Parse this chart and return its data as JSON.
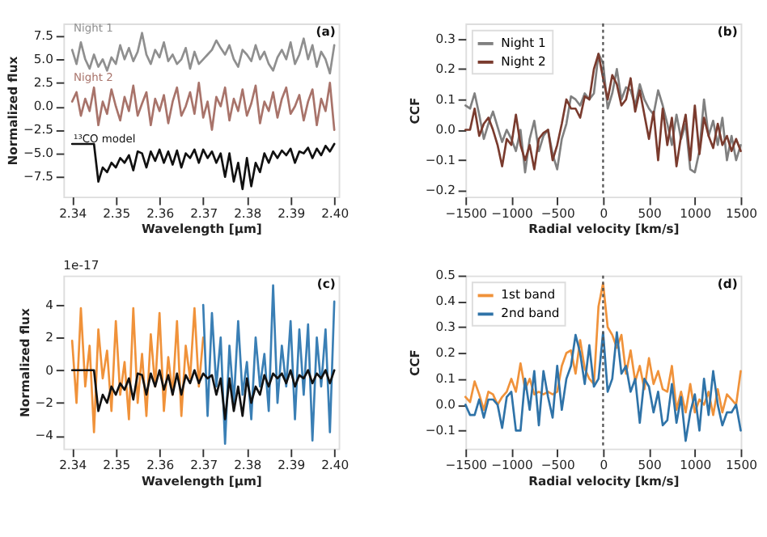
{
  "chart_data": [
    {
      "type": "line",
      "xlabel": "Wavelength [μm]",
      "ylabel": "Normalized flux",
      "annotations": [
        "(a)"
      ],
      "legend": false,
      "x": [
        2.34,
        2.341,
        2.342,
        2.343,
        2.344,
        2.345,
        2.346,
        2.347,
        2.348,
        2.349,
        2.35,
        2.351,
        2.352,
        2.353,
        2.354,
        2.355,
        2.356,
        2.357,
        2.358,
        2.359,
        2.36,
        2.361,
        2.362,
        2.363,
        2.364,
        2.365,
        2.366,
        2.367,
        2.368,
        2.369,
        2.37,
        2.371,
        2.372,
        2.373,
        2.374,
        2.375,
        2.376,
        2.377,
        2.378,
        2.379,
        2.38,
        2.381,
        2.382,
        2.383,
        2.384,
        2.385,
        2.386,
        2.387,
        2.388,
        2.389,
        2.39,
        2.391,
        2.392,
        2.393,
        2.394,
        2.395,
        2.396,
        2.397,
        2.398,
        2.399,
        2.4
      ],
      "series": [
        {
          "name": "Night 1",
          "color": "#8f8f8f",
          "values": [
            6.0,
            4.5,
            6.8,
            5.0,
            4.0,
            5.5,
            4.2,
            5.0,
            3.8,
            5.2,
            4.5,
            6.5,
            5.0,
            6.2,
            4.8,
            5.8,
            7.8,
            5.5,
            4.5,
            6.0,
            5.2,
            6.8,
            4.8,
            5.5,
            4.5,
            5.0,
            6.2,
            4.0,
            5.8,
            4.5,
            5.0,
            5.5,
            6.0,
            7.0,
            6.2,
            5.5,
            6.5,
            5.0,
            4.2,
            6.0,
            5.5,
            4.8,
            6.5,
            5.0,
            5.8,
            4.5,
            3.8,
            5.2,
            6.0,
            5.0,
            6.8,
            4.5,
            5.5,
            7.2,
            5.0,
            6.5,
            4.2,
            5.8,
            5.0,
            3.5,
            6.5
          ]
        },
        {
          "name": "Night 2",
          "color": "#a8736a",
          "values": [
            0.5,
            1.5,
            -1.0,
            0.8,
            -0.5,
            2.0,
            -2.0,
            0.5,
            -0.8,
            1.8,
            0.0,
            -1.5,
            1.0,
            -0.5,
            2.2,
            -1.0,
            0.3,
            1.5,
            -2.0,
            0.8,
            -0.5,
            1.2,
            -1.8,
            0.5,
            2.0,
            -1.0,
            0.0,
            1.5,
            -0.8,
            2.5,
            -1.2,
            0.5,
            -2.5,
            1.0,
            0.0,
            2.0,
            -1.5,
            0.8,
            -0.5,
            1.8,
            -1.0,
            0.3,
            2.2,
            -1.8,
            0.5,
            -0.5,
            1.5,
            -1.2,
            0.8,
            2.0,
            -0.8,
            0.0,
            1.2,
            -1.5,
            0.5,
            1.8,
            -2.0,
            0.8,
            -0.5,
            2.5,
            -2.5
          ]
        },
        {
          "name": "¹³CO model",
          "color": "#111111",
          "values": [
            -4.0,
            -4.0,
            -4.0,
            -4.0,
            -4.0,
            -4.0,
            -8.0,
            -6.5,
            -7.0,
            -6.0,
            -6.5,
            -5.5,
            -6.0,
            -5.2,
            -6.8,
            -4.8,
            -5.0,
            -6.5,
            -4.8,
            -5.8,
            -4.6,
            -6.0,
            -4.8,
            -6.2,
            -4.7,
            -6.5,
            -5.0,
            -5.5,
            -4.6,
            -6.0,
            -4.6,
            -5.5,
            -4.8,
            -6.0,
            -5.0,
            -7.5,
            -5.0,
            -8.0,
            -6.0,
            -8.8,
            -5.5,
            -8.5,
            -6.0,
            -7.0,
            -5.0,
            -6.0,
            -4.8,
            -5.5,
            -4.7,
            -5.2,
            -4.5,
            -6.0,
            -4.8,
            -5.0,
            -4.4,
            -5.5,
            -4.5,
            -5.2,
            -4.2,
            -4.8,
            -4.0
          ]
        }
      ],
      "xlim": [
        2.338,
        2.401
      ],
      "xticks": [
        {
          "value": 2.34,
          "label": "2.34"
        },
        {
          "value": 2.35,
          "label": "2.35"
        },
        {
          "value": 2.36,
          "label": "2.36"
        },
        {
          "value": 2.37,
          "label": "2.37"
        },
        {
          "value": 2.38,
          "label": "2.38"
        },
        {
          "value": 2.39,
          "label": "2.39"
        },
        {
          "value": 2.4,
          "label": "2.40"
        }
      ],
      "ylim": [
        -9.6,
        8.8
      ],
      "yticks": [
        {
          "value": -7.5,
          "label": "−7.5"
        },
        {
          "value": -5,
          "label": "−5.0"
        },
        {
          "value": -2.5,
          "label": "−2.5"
        },
        {
          "value": 0,
          "label": "0.0"
        },
        {
          "value": 2.5,
          "label": "2.5"
        },
        {
          "value": 5,
          "label": "5.0"
        },
        {
          "value": 7.5,
          "label": "7.5"
        }
      ]
    },
    {
      "type": "line",
      "xlabel": "Radial velocity [km/s]",
      "ylabel": "CCF",
      "annotations": [
        "(b)"
      ],
      "legend": "top left",
      "x": [
        -1500,
        -1450,
        -1400,
        -1350,
        -1300,
        -1250,
        -1200,
        -1150,
        -1100,
        -1050,
        -1000,
        -950,
        -900,
        -850,
        -800,
        -750,
        -700,
        -650,
        -600,
        -550,
        -500,
        -450,
        -400,
        -350,
        -300,
        -250,
        -200,
        -150,
        -100,
        -50,
        0,
        50,
        100,
        150,
        200,
        250,
        300,
        350,
        400,
        450,
        500,
        550,
        600,
        650,
        700,
        750,
        800,
        850,
        900,
        950,
        1000,
        1050,
        1100,
        1150,
        1200,
        1250,
        1300,
        1350,
        1400,
        1450,
        1500
      ],
      "series": [
        {
          "name": "Night 1",
          "color": "#808080",
          "values": [
            0.08,
            0.07,
            0.12,
            0.05,
            -0.03,
            0.02,
            0.06,
            0.01,
            -0.04,
            0.0,
            -0.03,
            -0.07,
            0.0,
            -0.14,
            -0.03,
            0.03,
            -0.07,
            -0.02,
            0.0,
            -0.08,
            -0.13,
            -0.03,
            0.02,
            0.11,
            0.1,
            0.08,
            0.12,
            0.1,
            0.12,
            0.25,
            0.22,
            0.07,
            0.12,
            0.2,
            0.1,
            0.14,
            0.13,
            0.08,
            0.15,
            0.1,
            0.07,
            0.05,
            0.13,
            0.08,
            0.02,
            -0.05,
            0.05,
            -0.03,
            0.02,
            -0.13,
            -0.14,
            -0.07,
            0.1,
            -0.02,
            0.03,
            -0.05,
            0.04,
            -0.1,
            -0.02,
            -0.1,
            -0.05
          ]
        },
        {
          "name": "Night 2",
          "color": "#7a3b2e",
          "values": [
            0.0,
            0.0,
            0.07,
            -0.02,
            0.02,
            0.04,
            0.0,
            -0.05,
            -0.12,
            -0.03,
            -0.05,
            0.05,
            -0.05,
            -0.1,
            -0.05,
            -0.13,
            -0.03,
            -0.01,
            0.0,
            -0.1,
            -0.05,
            0.02,
            0.1,
            0.07,
            0.07,
            0.04,
            0.11,
            0.1,
            0.2,
            0.25,
            0.17,
            0.1,
            0.18,
            0.15,
            0.08,
            0.1,
            0.17,
            0.06,
            0.13,
            0.05,
            -0.03,
            0.06,
            -0.1,
            0.07,
            -0.05,
            0.04,
            -0.12,
            -0.02,
            0.05,
            -0.1,
            0.08,
            -0.08,
            0.04,
            -0.02,
            -0.06,
            0.02,
            -0.05,
            -0.02,
            -0.07,
            -0.03,
            -0.07
          ]
        }
      ],
      "xlim": [
        -1500,
        1500
      ],
      "xticks": [
        {
          "value": -1500,
          "label": "−1500"
        },
        {
          "value": -1000,
          "label": "−1000"
        },
        {
          "value": -500,
          "label": "−500"
        },
        0,
        500,
        1000,
        1500
      ],
      "ylim": [
        -0.22,
        0.35
      ],
      "yticks": [
        {
          "value": -0.2,
          "label": "−0.2"
        },
        {
          "value": -0.1,
          "label": "−0.1"
        },
        {
          "value": 0,
          "label": "0.0"
        },
        {
          "value": 0.1,
          "label": "0.1"
        },
        {
          "value": 0.2,
          "label": "0.2"
        },
        {
          "value": 0.3,
          "label": "0.3"
        }
      ],
      "ref_lines": [
        {
          "axis": "x",
          "value": 0,
          "color": "#555555",
          "line_style": "dotted"
        }
      ]
    },
    {
      "type": "line",
      "xlabel": "Wavelength [μm]",
      "ylabel": "Normalized flux",
      "annotations": [
        "(c)",
        "1e-17"
      ],
      "legend": false,
      "series": [
        {
          "color": "#f0923a",
          "x": [
            2.34,
            2.341,
            2.342,
            2.343,
            2.344,
            2.345,
            2.346,
            2.347,
            2.348,
            2.349,
            2.35,
            2.351,
            2.352,
            2.353,
            2.354,
            2.355,
            2.356,
            2.357,
            2.358,
            2.359,
            2.36,
            2.361,
            2.362,
            2.363,
            2.364,
            2.365,
            2.366,
            2.367,
            2.368,
            2.369,
            2.37
          ],
          "values": [
            1.8,
            -2.0,
            3.8,
            -1.0,
            1.5,
            -3.8,
            2.5,
            -0.5,
            1.2,
            -2.5,
            3.0,
            -1.5,
            0.5,
            -3.0,
            3.8,
            -2.0,
            1.0,
            -2.8,
            2.2,
            -1.0,
            3.5,
            -2.5,
            0.8,
            -1.5,
            3.0,
            -2.8,
            1.5,
            -0.5,
            3.8,
            -1.0,
            2.0
          ]
        },
        {
          "color": "#3a7fb5",
          "x": [
            2.37,
            2.371,
            2.372,
            2.373,
            2.374,
            2.375,
            2.376,
            2.377,
            2.378,
            2.379,
            2.38,
            2.381,
            2.382,
            2.383,
            2.384,
            2.385,
            2.386,
            2.387,
            2.388,
            2.389,
            2.39,
            2.391,
            2.392,
            2.393,
            2.394,
            2.395,
            2.396,
            2.397,
            2.398,
            2.399,
            2.4
          ],
          "values": [
            4.0,
            -2.8,
            3.5,
            -1.0,
            2.0,
            -4.5,
            1.5,
            -2.0,
            3.0,
            -1.5,
            0.5,
            -3.0,
            2.0,
            -1.0,
            1.0,
            -2.5,
            5.2,
            -2.0,
            1.5,
            -1.0,
            3.0,
            -3.0,
            2.5,
            -1.5,
            2.8,
            -4.3,
            2.0,
            -1.0,
            2.5,
            -3.8,
            4.2
          ]
        },
        {
          "color": "#111111",
          "x": [
            2.34,
            2.341,
            2.342,
            2.343,
            2.344,
            2.345,
            2.346,
            2.347,
            2.348,
            2.349,
            2.35,
            2.351,
            2.352,
            2.353,
            2.354,
            2.355,
            2.356,
            2.357,
            2.358,
            2.359,
            2.36,
            2.361,
            2.362,
            2.363,
            2.364,
            2.365,
            2.366,
            2.367,
            2.368,
            2.369,
            2.37,
            2.371,
            2.372,
            2.373,
            2.374,
            2.375,
            2.376,
            2.377,
            2.378,
            2.379,
            2.38,
            2.381,
            2.382,
            2.383,
            2.384,
            2.385,
            2.386,
            2.387,
            2.388,
            2.389,
            2.39,
            2.391,
            2.392,
            2.393,
            2.394,
            2.395,
            2.396,
            2.397,
            2.398,
            2.399,
            2.4
          ],
          "values": [
            0,
            0,
            0,
            0,
            0,
            0,
            -2.5,
            -1.5,
            -2.0,
            -1.0,
            -1.5,
            -0.8,
            -1.2,
            -0.5,
            -1.8,
            -0.2,
            -0.3,
            -1.5,
            -0.2,
            -1.0,
            0.0,
            -1.2,
            -0.3,
            -1.5,
            -0.2,
            -1.5,
            -0.3,
            -0.8,
            0.0,
            -0.8,
            -0.2,
            -0.5,
            -0.3,
            -1.5,
            -0.5,
            -3.0,
            -0.5,
            -2.5,
            -1.0,
            -2.8,
            -0.5,
            -2.0,
            -1.0,
            -1.5,
            -0.3,
            -1.0,
            -0.2,
            -0.5,
            -0.2,
            -0.8,
            0.0,
            -1.0,
            -0.3,
            -0.5,
            0.0,
            -0.8,
            -0.2,
            -0.5,
            0.0,
            -0.8,
            0.0
          ]
        }
      ],
      "xlim": [
        2.338,
        2.401
      ],
      "xticks": [
        {
          "value": 2.34,
          "label": "2.34"
        },
        {
          "value": 2.35,
          "label": "2.35"
        },
        {
          "value": 2.36,
          "label": "2.36"
        },
        {
          "value": 2.37,
          "label": "2.37"
        },
        {
          "value": 2.38,
          "label": "2.38"
        },
        {
          "value": 2.39,
          "label": "2.39"
        },
        {
          "value": 2.4,
          "label": "2.40"
        }
      ],
      "ylim": [
        -4.8,
        5.8
      ],
      "yticks": [
        {
          "value": -4,
          "label": "−4"
        },
        {
          "value": -2,
          "label": "−2"
        },
        0,
        2,
        4
      ]
    },
    {
      "type": "line",
      "xlabel": "Radial velocity [km/s]",
      "ylabel": "CCF",
      "annotations": [
        "(d)"
      ],
      "legend": "top left",
      "x": [
        -1500,
        -1450,
        -1400,
        -1350,
        -1300,
        -1250,
        -1200,
        -1150,
        -1100,
        -1050,
        -1000,
        -950,
        -900,
        -850,
        -800,
        -750,
        -700,
        -650,
        -600,
        -550,
        -500,
        -450,
        -400,
        -350,
        -300,
        -250,
        -200,
        -150,
        -100,
        -50,
        0,
        50,
        100,
        150,
        200,
        250,
        300,
        350,
        400,
        450,
        500,
        550,
        600,
        650,
        700,
        750,
        800,
        850,
        900,
        950,
        1000,
        1050,
        1100,
        1150,
        1200,
        1250,
        1300,
        1350,
        1400,
        1450,
        1500
      ],
      "series": [
        {
          "name": "1st band",
          "color": "#f0923a",
          "values": [
            0.03,
            0.01,
            0.09,
            0.04,
            -0.02,
            0.05,
            0.04,
            0.0,
            0.03,
            0.05,
            0.1,
            0.05,
            0.16,
            0.06,
            0.1,
            0.04,
            0.05,
            0.04,
            0.05,
            0.04,
            0.05,
            0.15,
            0.2,
            0.21,
            0.12,
            0.25,
            0.14,
            0.1,
            0.08,
            0.38,
            0.47,
            0.3,
            0.27,
            0.22,
            0.27,
            0.12,
            0.21,
            0.09,
            0.15,
            0.06,
            0.18,
            0.08,
            0.13,
            0.06,
            0.05,
            0.15,
            -0.02,
            0.05,
            -0.03,
            0.08,
            -0.03,
            0.02,
            0.0,
            0.05,
            -0.04,
            0.06,
            -0.03,
            0.04,
            0.02,
            0.0,
            0.13
          ]
        },
        {
          "name": "2nd band",
          "color": "#2f73a8",
          "values": [
            0.0,
            -0.04,
            -0.04,
            0.02,
            -0.05,
            0.02,
            0.02,
            0.0,
            -0.09,
            0.03,
            0.05,
            -0.1,
            -0.1,
            0.1,
            -0.02,
            0.13,
            -0.08,
            0.13,
            0.03,
            -0.05,
            0.15,
            -0.02,
            0.1,
            0.15,
            0.27,
            0.2,
            0.08,
            0.23,
            0.07,
            0.1,
            0.28,
            0.05,
            0.1,
            0.28,
            0.12,
            0.15,
            0.05,
            0.1,
            -0.07,
            0.1,
            0.07,
            -0.03,
            0.05,
            -0.08,
            -0.06,
            0.08,
            -0.07,
            0.03,
            -0.14,
            -0.03,
            0.04,
            -0.1,
            0.1,
            -0.04,
            0.13,
            0.0,
            -0.08,
            -0.03,
            -0.03,
            0.0,
            -0.1
          ]
        }
      ],
      "xlim": [
        -1500,
        1500
      ],
      "xticks": [
        {
          "value": -1500,
          "label": "−1500"
        },
        {
          "value": -1000,
          "label": "−1000"
        },
        {
          "value": -500,
          "label": "−500"
        },
        0,
        500,
        1000,
        1500
      ],
      "ylim": [
        -0.17,
        0.5
      ],
      "yticks": [
        {
          "value": -0.1,
          "label": "−0.1"
        },
        {
          "value": 0,
          "label": "0.0"
        },
        {
          "value": 0.1,
          "label": "0.1"
        },
        {
          "value": 0.2,
          "label": "0.2"
        },
        {
          "value": 0.3,
          "label": "0.3"
        },
        {
          "value": 0.4,
          "label": "0.4"
        },
        {
          "value": 0.5,
          "label": "0.5"
        }
      ],
      "ref_lines": [
        {
          "axis": "x",
          "value": 0,
          "color": "#555555",
          "line_style": "dotted"
        }
      ]
    }
  ]
}
